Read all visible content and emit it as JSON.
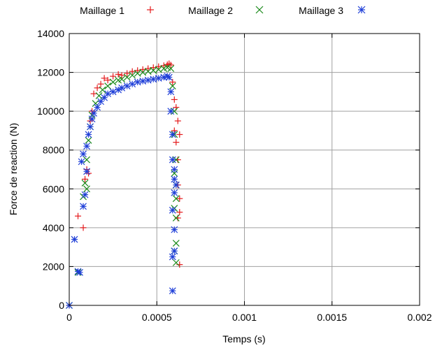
{
  "chart_data": {
    "type": "scatter",
    "title": "",
    "xlabel": "Temps (s)",
    "ylabel": "Force de reaction (N)",
    "xlim": [
      0,
      0.002
    ],
    "ylim": [
      0,
      14000
    ],
    "x_ticks": [
      0,
      0.0005,
      0.001,
      0.0015,
      0.002
    ],
    "x_tick_labels": [
      "0",
      "0.0005",
      "0.001",
      "0.0015",
      "0.002"
    ],
    "y_ticks": [
      0,
      2000,
      4000,
      6000,
      8000,
      10000,
      12000,
      14000
    ],
    "y_tick_labels": [
      "0",
      "2000",
      "4000",
      "6000",
      "8000",
      "10000",
      "12000",
      "14000"
    ],
    "grid": true,
    "legend_position": "top",
    "series": [
      {
        "name": "Maillage 1",
        "marker": "plus",
        "color": "#e41a1c",
        "points": [
          [
            0,
            0
          ],
          [
            5e-05,
            4600
          ],
          [
            8e-05,
            4000
          ],
          [
            9e-05,
            6500
          ],
          [
            0.0001,
            7000
          ],
          [
            0.00011,
            6800
          ],
          [
            0.00012,
            9500
          ],
          [
            0.00013,
            10000
          ],
          [
            0.00014,
            10900
          ],
          [
            0.00016,
            11200
          ],
          [
            0.00018,
            11400
          ],
          [
            0.0002,
            11700
          ],
          [
            0.00022,
            11600
          ],
          [
            0.00025,
            11800
          ],
          [
            0.00028,
            11900
          ],
          [
            0.0003,
            11850
          ],
          [
            0.00033,
            11950
          ],
          [
            0.00036,
            12050
          ],
          [
            0.00039,
            12100
          ],
          [
            0.00042,
            12150
          ],
          [
            0.00045,
            12200
          ],
          [
            0.00048,
            12250
          ],
          [
            0.00051,
            12300
          ],
          [
            0.00054,
            12350
          ],
          [
            0.00056,
            12400
          ],
          [
            0.00057,
            12450
          ],
          [
            0.00058,
            12380
          ],
          [
            0.00059,
            11500
          ],
          [
            0.0006,
            10600
          ],
          [
            0.0006,
            9000
          ],
          [
            0.00061,
            8400
          ],
          [
            0.00062,
            7500
          ],
          [
            0.00062,
            6200
          ],
          [
            0.00063,
            5500
          ],
          [
            0.00063,
            4800
          ],
          [
            0.00062,
            4500
          ],
          [
            0.00063,
            2100
          ],
          [
            0.00062,
            9500
          ],
          [
            0.00061,
            10200
          ],
          [
            0.00063,
            8800
          ]
        ]
      },
      {
        "name": "Maillage 2",
        "marker": "cross",
        "color": "#1a8a1a",
        "points": [
          [
            0,
            0
          ],
          [
            5e-05,
            1700
          ],
          [
            8e-05,
            5600
          ],
          [
            9e-05,
            6300
          ],
          [
            0.0001,
            6000
          ],
          [
            0.0001,
            7500
          ],
          [
            0.00011,
            8500
          ],
          [
            0.00012,
            9200
          ],
          [
            0.00013,
            9800
          ],
          [
            0.00015,
            10400
          ],
          [
            0.00017,
            10800
          ],
          [
            0.00019,
            11100
          ],
          [
            0.00022,
            11300
          ],
          [
            0.00025,
            11500
          ],
          [
            0.00028,
            11600
          ],
          [
            0.0003,
            11650
          ],
          [
            0.00033,
            11750
          ],
          [
            0.00036,
            11850
          ],
          [
            0.00039,
            11950
          ],
          [
            0.00042,
            12000
          ],
          [
            0.00045,
            12050
          ],
          [
            0.00048,
            12100
          ],
          [
            0.00051,
            12150
          ],
          [
            0.00054,
            12200
          ],
          [
            0.00056,
            12250
          ],
          [
            0.00058,
            12200
          ],
          [
            0.00059,
            11300
          ],
          [
            0.0006,
            10000
          ],
          [
            0.0006,
            8800
          ],
          [
            0.00061,
            7500
          ],
          [
            0.00061,
            6200
          ],
          [
            0.0006,
            5000
          ],
          [
            0.00061,
            4500
          ],
          [
            0.00061,
            3200
          ],
          [
            0.0006,
            2800
          ],
          [
            0.00061,
            2200
          ],
          [
            0.00061,
            5500
          ],
          [
            0.0006,
            6800
          ]
        ]
      },
      {
        "name": "Maillage 3",
        "marker": "star",
        "color": "#1f3fd8",
        "points": [
          [
            0,
            0
          ],
          [
            3e-05,
            3400
          ],
          [
            5e-05,
            1750
          ],
          [
            6e-05,
            1700
          ],
          [
            7e-05,
            7400
          ],
          [
            8e-05,
            7800
          ],
          [
            8e-05,
            5100
          ],
          [
            9e-05,
            5700
          ],
          [
            0.0001,
            6900
          ],
          [
            0.0001,
            8200
          ],
          [
            0.00011,
            8800
          ],
          [
            0.00012,
            9200
          ],
          [
            0.00013,
            9600
          ],
          [
            0.00014,
            9900
          ],
          [
            0.00016,
            10200
          ],
          [
            0.00018,
            10500
          ],
          [
            0.0002,
            10700
          ],
          [
            0.00022,
            10900
          ],
          [
            0.00025,
            11000
          ],
          [
            0.00028,
            11100
          ],
          [
            0.0003,
            11200
          ],
          [
            0.00033,
            11300
          ],
          [
            0.00036,
            11400
          ],
          [
            0.00039,
            11500
          ],
          [
            0.00042,
            11550
          ],
          [
            0.00045,
            11600
          ],
          [
            0.00048,
            11650
          ],
          [
            0.00051,
            11700
          ],
          [
            0.00054,
            11750
          ],
          [
            0.00056,
            11800
          ],
          [
            0.00057,
            11750
          ],
          [
            0.00058,
            11000
          ],
          [
            0.00058,
            10000
          ],
          [
            0.00059,
            8800
          ],
          [
            0.00059,
            7500
          ],
          [
            0.0006,
            6500
          ],
          [
            0.0006,
            5800
          ],
          [
            0.00059,
            4900
          ],
          [
            0.0006,
            3900
          ],
          [
            0.00059,
            2500
          ],
          [
            0.0006,
            2800
          ],
          [
            0.00059,
            750
          ],
          [
            0.00061,
            6200
          ],
          [
            0.0006,
            7000
          ]
        ]
      }
    ]
  }
}
